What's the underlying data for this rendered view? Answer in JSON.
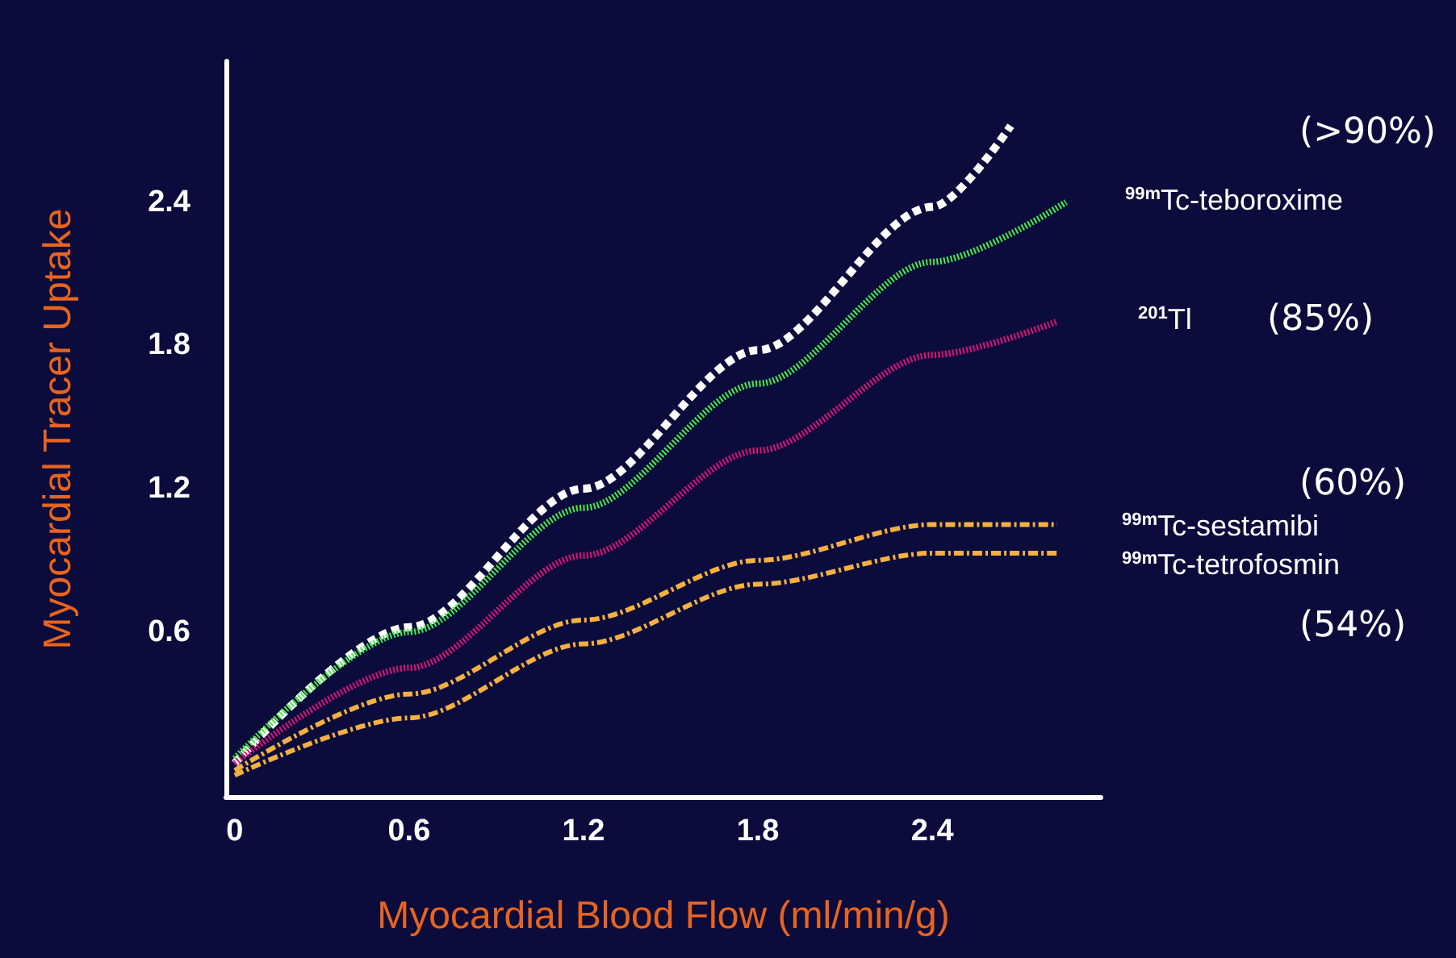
{
  "chart_data": {
    "type": "line",
    "xlabel": "Myocardial Blood Flow (ml/min/g)",
    "ylabel": "Myocardial Tracer Uptake",
    "xlim": [
      -0.03,
      2.98
    ],
    "ylim": [
      -0.09,
      2.99
    ],
    "xticks": [
      0,
      0.6,
      1.2,
      1.8,
      2.4
    ],
    "yticks": [
      0.6,
      1.2,
      1.8,
      2.4
    ],
    "grid": false,
    "legend": false,
    "marker": "none",
    "series": [
      {
        "color": "#ffffff",
        "line_style": "dashed",
        "x": [
          0,
          0.6,
          1.2,
          1.8,
          2.4,
          2.67
        ],
        "values": [
          0.05,
          0.62,
          1.2,
          1.78,
          2.38,
          2.72
        ]
      },
      {
        "name": "$^{99m}$Tc-teboroxime",
        "color": "#44ee44",
        "line_style": "dotted",
        "x": [
          0,
          0.6,
          1.2,
          1.8,
          2.4,
          2.86
        ],
        "values": [
          0.07,
          0.6,
          1.12,
          1.64,
          2.15,
          2.4
        ]
      },
      {
        "name": "$^{201}$Tl",
        "color": "#e0107a",
        "line_style": "dotted",
        "x": [
          0,
          0.6,
          1.2,
          1.8,
          2.4,
          2.83
        ],
        "values": [
          0.05,
          0.45,
          0.92,
          1.36,
          1.76,
          1.9
        ]
      },
      {
        "name": "$^{99m}$Tc-sestamibi",
        "color": "#f5b040",
        "line_style": "dashdot",
        "x": [
          0,
          0.6,
          1.2,
          1.8,
          2.4,
          2.83
        ],
        "values": [
          0.02,
          0.34,
          0.65,
          0.9,
          1.05,
          1.05
        ]
      },
      {
        "name": "$^{99m}$Tc-tetrofosmin",
        "color": "#f5b040",
        "line_style": "dashdot",
        "x": [
          0,
          0.6,
          1.2,
          1.8,
          2.4,
          2.83
        ],
        "values": [
          0.0,
          0.24,
          0.55,
          0.8,
          0.93,
          0.93
        ]
      }
    ],
    "annotations": [
      "(>90%)",
      "(85%)",
      "(60%)",
      "(54%)"
    ]
  }
}
